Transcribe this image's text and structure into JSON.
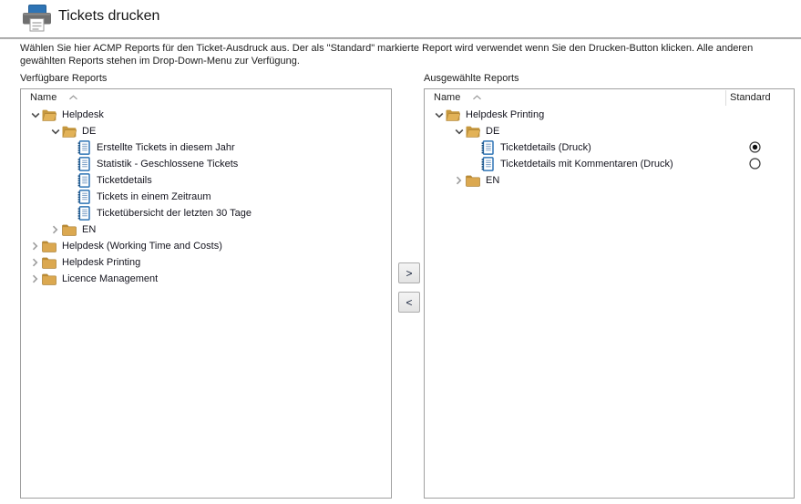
{
  "header": {
    "title": "Tickets drucken",
    "icon": "printer-icon"
  },
  "description": "Wählen Sie hier ACMP Reports für den Ticket-Ausdruck aus. Der als \"Standard\" markierte Report wird verwendet wenn Sie den Drucken-Button klicken. Alle anderen gewählten Reports stehen im Drop-Down-Menu zur Verfügung.",
  "transfer": {
    "move_right_label": ">",
    "move_left_label": "<"
  },
  "colors": {
    "accent_blue": "#2E74B5",
    "folder_gold": "#D9A64C",
    "panel_border": "#A0A0A0",
    "text": "#1B1B1B"
  },
  "left_panel": {
    "label": "Verfügbare Reports",
    "columns": [
      {
        "label": "Name",
        "sort": "ascending"
      }
    ],
    "rows": [
      {
        "level": 0,
        "icon": "folder-open",
        "chevron": "down",
        "label": "Helpdesk"
      },
      {
        "level": 1,
        "icon": "folder-open",
        "chevron": "down",
        "label": "DE"
      },
      {
        "level": 2,
        "icon": "report",
        "chevron": "none",
        "label": "Erstellte Tickets in diesem Jahr"
      },
      {
        "level": 2,
        "icon": "report",
        "chevron": "none",
        "label": "Statistik - Geschlossene Tickets"
      },
      {
        "level": 2,
        "icon": "report",
        "chevron": "none",
        "label": "Ticketdetails"
      },
      {
        "level": 2,
        "icon": "report",
        "chevron": "none",
        "label": "Tickets in einem Zeitraum"
      },
      {
        "level": 2,
        "icon": "report",
        "chevron": "none",
        "label": "Ticketübersicht der letzten 30 Tage"
      },
      {
        "level": 1,
        "icon": "folder-closed",
        "chevron": "right",
        "label": "EN"
      },
      {
        "level": 0,
        "icon": "folder-closed",
        "chevron": "right",
        "label": "Helpdesk (Working Time and Costs)"
      },
      {
        "level": 0,
        "icon": "folder-closed",
        "chevron": "right",
        "label": "Helpdesk Printing"
      },
      {
        "level": 0,
        "icon": "folder-closed",
        "chevron": "right",
        "label": "Licence Management"
      }
    ]
  },
  "right_panel": {
    "label": "Ausgewählte Reports",
    "columns": [
      {
        "label": "Name",
        "sort": "ascending"
      },
      {
        "label": "Standard"
      }
    ],
    "rows": [
      {
        "level": 0,
        "icon": "folder-open",
        "chevron": "down",
        "label": "Helpdesk Printing"
      },
      {
        "level": 1,
        "icon": "folder-open",
        "chevron": "down",
        "label": "DE"
      },
      {
        "level": 2,
        "icon": "report",
        "chevron": "none",
        "label": "Ticketdetails (Druck)",
        "radio": "selected"
      },
      {
        "level": 2,
        "icon": "report",
        "chevron": "none",
        "label": "Ticketdetails mit Kommentaren (Druck)",
        "radio": "unselected"
      },
      {
        "level": 1,
        "icon": "folder-closed",
        "chevron": "right",
        "label": "EN"
      }
    ]
  }
}
